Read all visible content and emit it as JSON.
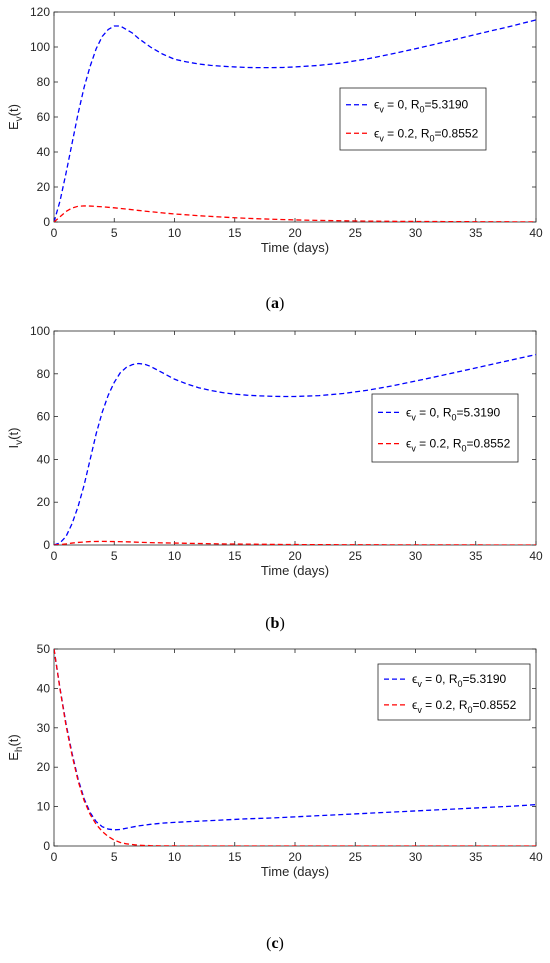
{
  "chart_data": [
    {
      "type": "line",
      "caption": "(a)",
      "xlabel": "Time (days)",
      "ylabel": "E_v(t)",
      "ylabel_main": "E",
      "ylabel_sub": "v",
      "ylabel_tail": "(t)",
      "xlim": [
        0,
        40
      ],
      "ylim": [
        0,
        120
      ],
      "xticks": [
        0,
        5,
        10,
        15,
        20,
        25,
        30,
        35,
        40
      ],
      "yticks": [
        0,
        20,
        40,
        60,
        80,
        100,
        120
      ],
      "grid": false,
      "legend_position": "right",
      "series": [
        {
          "name": "ϵ_v = 0, R_0=5.3190",
          "color": "#0000ff",
          "x": [
            0,
            0.5,
            1,
            1.5,
            2,
            2.5,
            3,
            3.5,
            4,
            4.5,
            5,
            5.5,
            6,
            6.5,
            7,
            8,
            9,
            10,
            11,
            12,
            13,
            14,
            15,
            16,
            17,
            18,
            19,
            20,
            22,
            24,
            26,
            28,
            30,
            32,
            34,
            36,
            38,
            40
          ],
          "y": [
            0,
            12,
            28,
            45,
            62,
            77,
            89,
            99,
            106,
            110,
            112,
            112,
            110,
            108,
            105,
            100,
            96,
            93,
            91.5,
            90.3,
            89.5,
            89,
            88.6,
            88.3,
            88.2,
            88.2,
            88.3,
            88.6,
            89.5,
            91,
            93.2,
            96,
            99,
            102.2,
            105.5,
            108.8,
            112,
            115.5
          ]
        },
        {
          "name": "ϵ_v = 0.2, R_0=0.8552",
          "color": "#ff0000",
          "x": [
            0,
            0.5,
            1,
            1.5,
            2,
            2.5,
            3,
            4,
            5,
            6,
            7,
            8,
            9,
            10,
            12,
            14,
            16,
            18,
            20,
            22,
            24,
            26,
            28,
            30,
            35,
            40
          ],
          "y": [
            0,
            3,
            6,
            8,
            9,
            9.2,
            9.1,
            8.7,
            8.1,
            7.4,
            6.6,
            5.9,
            5.2,
            4.6,
            3.6,
            2.8,
            2.1,
            1.6,
            1.2,
            0.9,
            0.7,
            0.5,
            0.4,
            0.3,
            0.15,
            0.05
          ]
        }
      ]
    },
    {
      "type": "line",
      "caption": "(b)",
      "xlabel": "Time (days)",
      "ylabel": "I_v(t)",
      "ylabel_main": "I",
      "ylabel_sub": "v",
      "ylabel_tail": "(t)",
      "xlim": [
        0,
        40
      ],
      "ylim": [
        0,
        100
      ],
      "xticks": [
        0,
        5,
        10,
        15,
        20,
        25,
        30,
        35,
        40
      ],
      "yticks": [
        0,
        20,
        40,
        60,
        80,
        100
      ],
      "grid": false,
      "legend_position": "right",
      "series": [
        {
          "name": "ϵ_v = 0, R_0=5.3190",
          "color": "#0000ff",
          "x": [
            0,
            0.5,
            1,
            1.5,
            2,
            2.5,
            3,
            3.5,
            4,
            4.5,
            5,
            5.5,
            6,
            6.5,
            7,
            7.5,
            8,
            9,
            10,
            11,
            12,
            13,
            14,
            15,
            16,
            17,
            18,
            19,
            20,
            22,
            24,
            26,
            28,
            30,
            32,
            34,
            36,
            38,
            40
          ],
          "y": [
            0,
            1,
            4,
            10,
            18,
            28,
            40,
            52,
            62,
            70,
            76,
            80.5,
            83,
            84.3,
            84.8,
            84.5,
            83.5,
            80.5,
            77.5,
            75.3,
            73.5,
            72.2,
            71.2,
            70.5,
            70,
            69.7,
            69.5,
            69.4,
            69.4,
            69.8,
            70.8,
            72.3,
            74.3,
            76.6,
            79,
            81.5,
            84,
            86.5,
            89
          ]
        },
        {
          "name": "ϵ_v = 0.2, R_0=0.8552",
          "color": "#ff0000",
          "x": [
            0,
            0.5,
            1,
            1.5,
            2,
            3,
            4,
            5,
            6,
            7,
            8,
            9,
            10,
            12,
            14,
            16,
            18,
            20,
            25,
            30,
            35,
            40
          ],
          "y": [
            0,
            0.2,
            0.5,
            0.9,
            1.2,
            1.6,
            1.7,
            1.6,
            1.5,
            1.3,
            1.1,
            1,
            0.9,
            0.7,
            0.5,
            0.4,
            0.3,
            0.2,
            0.1,
            0.05,
            0.02,
            0.01
          ]
        }
      ]
    },
    {
      "type": "line",
      "caption": "(c)",
      "xlabel": "Time (days)",
      "ylabel": "E_h(t)",
      "ylabel_main": "E",
      "ylabel_sub": "h",
      "ylabel_tail": "(t)",
      "xlim": [
        0,
        40
      ],
      "ylim": [
        0,
        50
      ],
      "xticks": [
        0,
        5,
        10,
        15,
        20,
        25,
        30,
        35,
        40
      ],
      "yticks": [
        0,
        10,
        20,
        30,
        40,
        50
      ],
      "grid": false,
      "legend_position": "top-right",
      "series": [
        {
          "name": "ϵ_v = 0, R_0=5.3190",
          "color": "#0000ff",
          "x": [
            0,
            0.5,
            1,
            1.5,
            2,
            2.5,
            3,
            3.5,
            4,
            4.5,
            5,
            5.5,
            6,
            7,
            8,
            9,
            10,
            12,
            14,
            16,
            18,
            20,
            22,
            24,
            26,
            28,
            30,
            32,
            34,
            36,
            38,
            40
          ],
          "y": [
            50,
            40,
            31,
            23.5,
            17,
            12,
            8.5,
            6.2,
            4.9,
            4.3,
            4.1,
            4.2,
            4.5,
            5.1,
            5.5,
            5.8,
            6,
            6.3,
            6.6,
            6.9,
            7.1,
            7.4,
            7.7,
            8,
            8.3,
            8.6,
            8.9,
            9.2,
            9.5,
            9.8,
            10.1,
            10.5
          ]
        },
        {
          "name": "ϵ_v = 0.2, R_0=0.8552",
          "color": "#ff0000",
          "x": [
            0,
            0.5,
            1,
            1.5,
            2,
            2.5,
            3,
            3.5,
            4,
            4.5,
            5,
            5.5,
            6,
            7,
            8,
            9,
            10,
            12,
            15,
            20,
            25,
            30,
            35,
            40
          ],
          "y": [
            50,
            39.8,
            30.5,
            23,
            16.5,
            11.5,
            8,
            5.5,
            3.7,
            2.4,
            1.5,
            0.9,
            0.55,
            0.2,
            0.08,
            0.03,
            0.01,
            0,
            0,
            0,
            0,
            0,
            0,
            0
          ]
        }
      ]
    }
  ]
}
